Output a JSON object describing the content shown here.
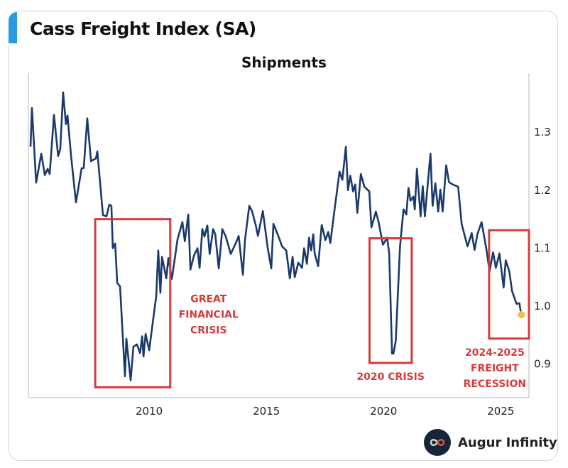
{
  "header": {
    "title": "Cass Freight Index (SA)",
    "accent_color": "#2b9be0"
  },
  "brand": {
    "name": "Augur Infinity",
    "icon": "infinity-icon"
  },
  "chart_data": {
    "type": "line",
    "title": "Shipments",
    "xlabel": "",
    "ylabel": "",
    "xlim": [
      2004.85,
      2026.2
    ],
    "ylim": [
      0.842,
      1.402
    ],
    "x_ticks": [
      2010,
      2015,
      2020,
      2025
    ],
    "x_tick_labels": [
      "2010",
      "2015",
      "2020",
      "2025"
    ],
    "y_ticks": [
      0.9,
      1.0,
      1.1,
      1.2,
      1.3
    ],
    "y_tick_labels": [
      "0.9",
      "1.0",
      "1.1",
      "1.2",
      "1.3"
    ],
    "y_axis_position": "right",
    "grid": false,
    "line_color": "#1b3a6b",
    "series": [
      {
        "points": [
          [
            2004.94,
            1.275
          ],
          [
            2005.0,
            1.342
          ],
          [
            2005.18,
            1.213
          ],
          [
            2005.4,
            1.263
          ],
          [
            2005.55,
            1.226
          ],
          [
            2005.67,
            1.237
          ],
          [
            2005.76,
            1.228
          ],
          [
            2005.94,
            1.33
          ],
          [
            2006.12,
            1.259
          ],
          [
            2006.21,
            1.271
          ],
          [
            2006.33,
            1.369
          ],
          [
            2006.45,
            1.314
          ],
          [
            2006.52,
            1.329
          ],
          [
            2006.67,
            1.259
          ],
          [
            2006.88,
            1.179
          ],
          [
            2007.12,
            1.238
          ],
          [
            2007.21,
            1.238
          ],
          [
            2007.36,
            1.324
          ],
          [
            2007.52,
            1.25
          ],
          [
            2007.73,
            1.255
          ],
          [
            2007.79,
            1.267
          ],
          [
            2008.03,
            1.157
          ],
          [
            2008.18,
            1.155
          ],
          [
            2008.3,
            1.175
          ],
          [
            2008.39,
            1.173
          ],
          [
            2008.45,
            1.1
          ],
          [
            2008.55,
            1.108
          ],
          [
            2008.64,
            1.04
          ],
          [
            2008.76,
            1.034
          ],
          [
            2008.97,
            0.879
          ],
          [
            2009.03,
            0.944
          ],
          [
            2009.21,
            0.872
          ],
          [
            2009.33,
            0.93
          ],
          [
            2009.48,
            0.934
          ],
          [
            2009.61,
            0.919
          ],
          [
            2009.7,
            0.948
          ],
          [
            2009.76,
            0.913
          ],
          [
            2009.85,
            0.952
          ],
          [
            2010.0,
            0.924
          ],
          [
            2010.3,
            1.017
          ],
          [
            2010.39,
            1.096
          ],
          [
            2010.48,
            1.023
          ],
          [
            2010.55,
            1.085
          ],
          [
            2010.73,
            1.048
          ],
          [
            2010.82,
            1.083
          ],
          [
            2010.97,
            1.047
          ],
          [
            2011.21,
            1.115
          ],
          [
            2011.42,
            1.145
          ],
          [
            2011.52,
            1.112
          ],
          [
            2011.67,
            1.158
          ],
          [
            2011.76,
            1.063
          ],
          [
            2011.91,
            1.087
          ],
          [
            2012.06,
            1.1
          ],
          [
            2012.15,
            1.066
          ],
          [
            2012.27,
            1.133
          ],
          [
            2012.36,
            1.12
          ],
          [
            2012.48,
            1.139
          ],
          [
            2012.58,
            1.09
          ],
          [
            2012.73,
            1.133
          ],
          [
            2012.82,
            1.124
          ],
          [
            2012.97,
            1.065
          ],
          [
            2013.12,
            1.133
          ],
          [
            2013.27,
            1.12
          ],
          [
            2013.48,
            1.09
          ],
          [
            2013.7,
            1.109
          ],
          [
            2013.82,
            1.121
          ],
          [
            2014.0,
            1.054
          ],
          [
            2014.09,
            1.115
          ],
          [
            2014.27,
            1.173
          ],
          [
            2014.39,
            1.164
          ],
          [
            2014.55,
            1.139
          ],
          [
            2014.64,
            1.121
          ],
          [
            2014.85,
            1.164
          ],
          [
            2015.06,
            1.1
          ],
          [
            2015.21,
            1.065
          ],
          [
            2015.3,
            1.142
          ],
          [
            2015.52,
            1.12
          ],
          [
            2015.67,
            1.103
          ],
          [
            2015.85,
            1.096
          ],
          [
            2016.0,
            1.048
          ],
          [
            2016.12,
            1.085
          ],
          [
            2016.21,
            1.05
          ],
          [
            2016.36,
            1.075
          ],
          [
            2016.52,
            1.066
          ],
          [
            2016.61,
            1.1
          ],
          [
            2016.73,
            1.073
          ],
          [
            2016.82,
            1.118
          ],
          [
            2016.91,
            1.096
          ],
          [
            2017.0,
            1.124
          ],
          [
            2017.06,
            1.091
          ],
          [
            2017.21,
            1.069
          ],
          [
            2017.36,
            1.14
          ],
          [
            2017.52,
            1.114
          ],
          [
            2017.64,
            1.128
          ],
          [
            2017.73,
            1.109
          ],
          [
            2017.88,
            1.158
          ],
          [
            2018.12,
            1.232
          ],
          [
            2018.24,
            1.218
          ],
          [
            2018.39,
            1.275
          ],
          [
            2018.48,
            1.2
          ],
          [
            2018.58,
            1.225
          ],
          [
            2018.7,
            1.198
          ],
          [
            2018.79,
            1.21
          ],
          [
            2018.88,
            1.161
          ],
          [
            2019.03,
            1.228
          ],
          [
            2019.18,
            1.206
          ],
          [
            2019.39,
            1.198
          ],
          [
            2019.48,
            1.136
          ],
          [
            2019.67,
            1.163
          ],
          [
            2019.79,
            1.145
          ],
          [
            2019.97,
            1.106
          ],
          [
            2020.15,
            1.118
          ],
          [
            2020.24,
            1.091
          ],
          [
            2020.36,
            0.918
          ],
          [
            2020.42,
            0.918
          ],
          [
            2020.52,
            0.94
          ],
          [
            2020.7,
            1.103
          ],
          [
            2020.85,
            1.167
          ],
          [
            2020.97,
            1.158
          ],
          [
            2021.06,
            1.204
          ],
          [
            2021.15,
            1.182
          ],
          [
            2021.27,
            1.189
          ],
          [
            2021.33,
            1.167
          ],
          [
            2021.42,
            1.237
          ],
          [
            2021.58,
            1.155
          ],
          [
            2021.67,
            1.207
          ],
          [
            2021.76,
            1.155
          ],
          [
            2022.0,
            1.263
          ],
          [
            2022.09,
            1.173
          ],
          [
            2022.21,
            1.212
          ],
          [
            2022.33,
            1.163
          ],
          [
            2022.42,
            1.201
          ],
          [
            2022.52,
            1.163
          ],
          [
            2022.67,
            1.243
          ],
          [
            2022.79,
            1.214
          ],
          [
            2022.94,
            1.21
          ],
          [
            2023.18,
            1.206
          ],
          [
            2023.33,
            1.142
          ],
          [
            2023.58,
            1.103
          ],
          [
            2023.76,
            1.126
          ],
          [
            2023.88,
            1.097
          ],
          [
            2024.0,
            1.124
          ],
          [
            2024.18,
            1.145
          ],
          [
            2024.39,
            1.097
          ],
          [
            2024.52,
            1.06
          ],
          [
            2024.67,
            1.093
          ],
          [
            2024.79,
            1.066
          ],
          [
            2024.94,
            1.091
          ],
          [
            2025.12,
            1.032
          ],
          [
            2025.21,
            1.079
          ],
          [
            2025.36,
            1.06
          ],
          [
            2025.48,
            1.026
          ],
          [
            2025.67,
            1.004
          ],
          [
            2025.79,
            1.005
          ],
          [
            2025.85,
            0.991
          ]
        ]
      }
    ],
    "last_point": {
      "x": 2025.88,
      "y": 0.985,
      "color": "#f0c24a"
    },
    "annotations": [
      {
        "label_lines": [
          "GREAT",
          "FINANCIAL",
          "CRISIS"
        ],
        "box": {
          "x": [
            2007.7,
            2010.9
          ],
          "y": [
            0.86,
            1.15
          ]
        },
        "label_pos": "right",
        "color": "#d63b3b"
      },
      {
        "label_lines": [
          "2020 CRISIS"
        ],
        "box": {
          "x": [
            2019.4,
            2021.2
          ],
          "y": [
            0.902,
            1.117
          ]
        },
        "label_pos": "below",
        "color": "#d63b3b"
      },
      {
        "label_lines": [
          "2024-2025",
          "FREIGHT",
          "RECESSION"
        ],
        "box": {
          "x": [
            2024.5,
            2026.2
          ],
          "y": [
            0.944,
            1.131
          ]
        },
        "label_pos": "below",
        "color": "#d63b3b"
      }
    ]
  }
}
